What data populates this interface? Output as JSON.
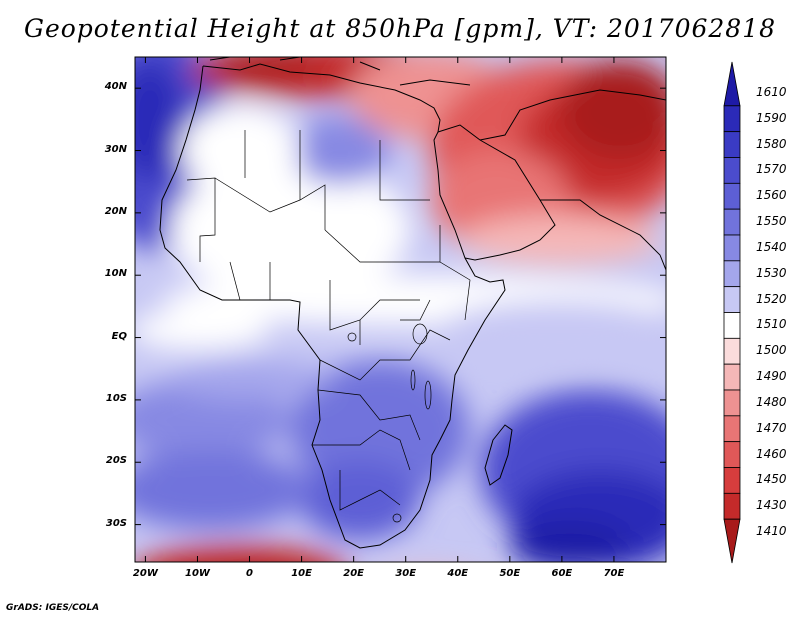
{
  "title": "Geopotential Height at 850hPa [gpm], VT: 2017062818",
  "credit": "GrADS: IGES/COLA",
  "map": {
    "lat_range": [
      -36,
      45
    ],
    "lon_range": [
      -22,
      80
    ],
    "lat_labels": [
      {
        "lat": 40,
        "label": "40N"
      },
      {
        "lat": 30,
        "label": "30N"
      },
      {
        "lat": 20,
        "label": "20N"
      },
      {
        "lat": 10,
        "label": "10N"
      },
      {
        "lat": 0,
        "label": "EQ"
      },
      {
        "lat": -10,
        "label": "10S"
      },
      {
        "lat": -20,
        "label": "20S"
      },
      {
        "lat": -30,
        "label": "30S"
      }
    ],
    "lon_labels": [
      {
        "lon": -20,
        "label": "20W"
      },
      {
        "lon": -10,
        "label": "10W"
      },
      {
        "lon": 0,
        "label": "0"
      },
      {
        "lon": 10,
        "label": "10E"
      },
      {
        "lon": 20,
        "label": "20E"
      },
      {
        "lon": 30,
        "label": "30E"
      },
      {
        "lon": 40,
        "label": "40E"
      },
      {
        "lon": 50,
        "label": "50E"
      },
      {
        "lon": 60,
        "label": "60E"
      },
      {
        "lon": 70,
        "label": "70E"
      }
    ]
  },
  "colorbar": {
    "levels": [
      "1610",
      "1590",
      "1580",
      "1570",
      "1560",
      "1550",
      "1540",
      "1530",
      "1520",
      "1510",
      "1500",
      "1490",
      "1480",
      "1470",
      "1460",
      "1450",
      "1430",
      "1410"
    ],
    "colors": [
      "#1e1aa6",
      "#2b2ab8",
      "#3a3bc4",
      "#4b4ccd",
      "#5d5fd5",
      "#7173dc",
      "#8789e3",
      "#a4a6ec",
      "#c7c8f4",
      "#ffffff",
      "#fbdcdc",
      "#f5b7b7",
      "#ee9292",
      "#e87575",
      "#e05858",
      "#d63d3d",
      "#c42a2a",
      "#a81a1a"
    ]
  }
}
